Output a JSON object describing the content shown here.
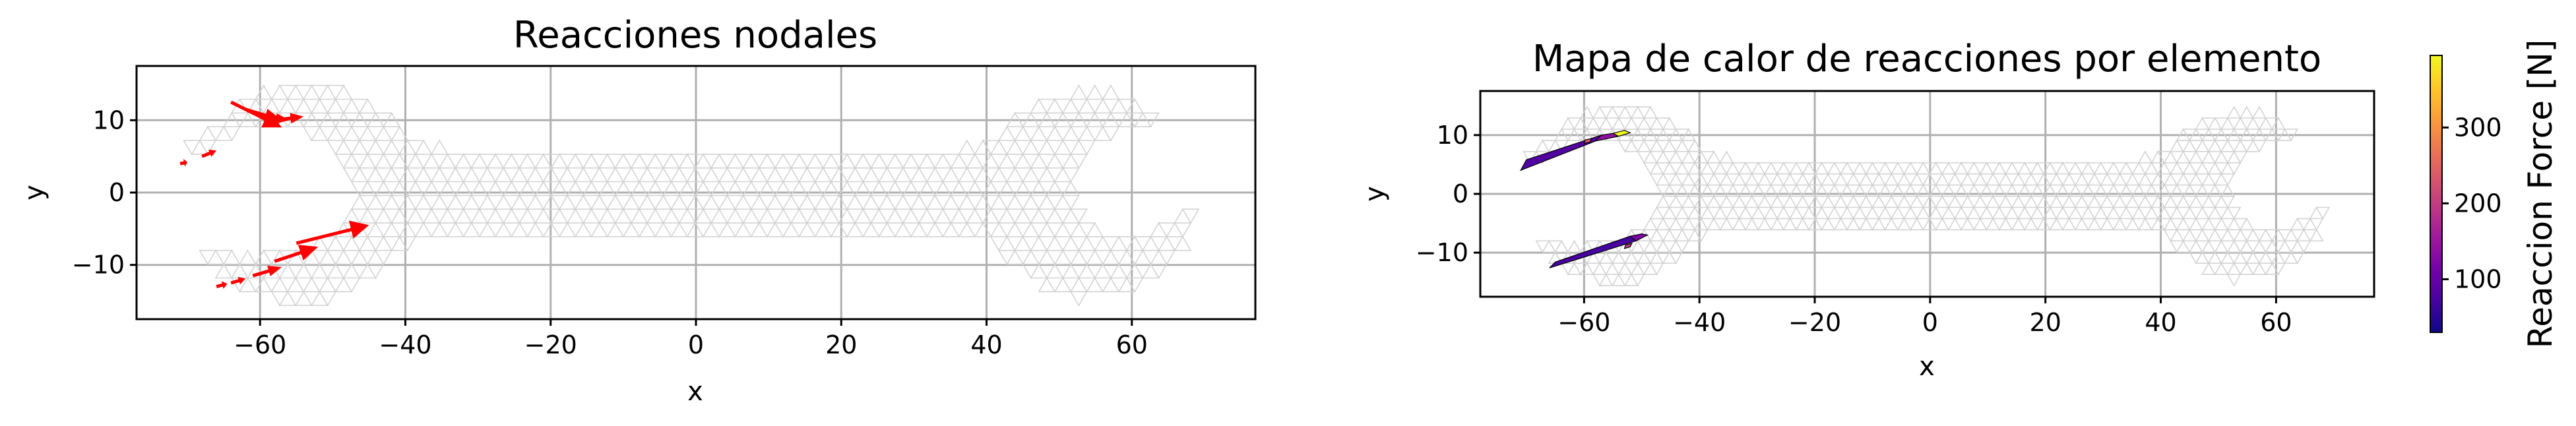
{
  "chart_data": [
    {
      "type": "quiver",
      "title": "Reacciones nodales",
      "xlabel": "x",
      "ylabel": "y",
      "xlim": [
        -77,
        77
      ],
      "ylim": [
        -17.5,
        17.5
      ],
      "xticks": [
        -60,
        -40,
        -20,
        0,
        20,
        40,
        60
      ],
      "yticks": [
        -10,
        0,
        10
      ],
      "xtick_labels": [
        "−60",
        "−40",
        "−20",
        "0",
        "20",
        "40",
        "60"
      ],
      "ytick_labels": [
        "−10",
        "0",
        "10"
      ],
      "grid": true,
      "mesh_color": "#d3d3d3",
      "arrow_color": "#ff0000",
      "arrows": [
        {
          "x": -64,
          "y": 12.5,
          "dx": 7,
          "dy": -3.5
        },
        {
          "x": -62,
          "y": 11.5,
          "dx": 5,
          "dy": -1.5
        },
        {
          "x": -60,
          "y": 10.5,
          "dx": 4,
          "dy": -0.5
        },
        {
          "x": -58,
          "y": 10.0,
          "dx": 4,
          "dy": 0.5
        },
        {
          "x": -68,
          "y": 5.0,
          "dx": 2,
          "dy": 0.8
        },
        {
          "x": -71,
          "y": 4.0,
          "dx": 1,
          "dy": 0.2
        },
        {
          "x": -55,
          "y": -7.0,
          "dx": 10,
          "dy": 2.5
        },
        {
          "x": -58,
          "y": -9.5,
          "dx": 6,
          "dy": 2.0
        },
        {
          "x": -61,
          "y": -11.5,
          "dx": 4,
          "dy": 1.2
        },
        {
          "x": -64,
          "y": -12.5,
          "dx": 2,
          "dy": 0.6
        },
        {
          "x": -66,
          "y": -13.0,
          "dx": 1.5,
          "dy": 0.4
        }
      ]
    },
    {
      "type": "heatmap",
      "title": "Mapa de calor de reacciones por elemento",
      "xlabel": "x",
      "ylabel": "y",
      "xlim": [
        -78,
        77
      ],
      "ylim": [
        -17.5,
        17.5
      ],
      "xticks": [
        -60,
        -40,
        -20,
        0,
        20,
        40,
        60
      ],
      "yticks": [
        -10,
        0,
        10
      ],
      "xtick_labels": [
        "−60",
        "−40",
        "−20",
        "0",
        "20",
        "40",
        "60"
      ],
      "ytick_labels": [
        "−10",
        "0",
        "10"
      ],
      "grid": true,
      "mesh_color": "#d3d3d3",
      "colormap": "plasma",
      "colorbar": {
        "label": "Reaccion Force [N]",
        "range": [
          30,
          395
        ],
        "ticks": [
          100,
          200,
          300
        ],
        "tick_labels": [
          "100",
          "200",
          "300"
        ]
      },
      "elements": [
        {
          "points": [
            [
              -71,
              4.0
            ],
            [
              -58,
              9.0
            ],
            [
              -57,
              10.0
            ],
            [
              -70,
              5.8
            ]
          ],
          "value": 80
        },
        {
          "points": [
            [
              -58,
              9.0
            ],
            [
              -54,
              9.8
            ],
            [
              -55,
              10.3
            ],
            [
              -57,
              10.0
            ]
          ],
          "value": 140
        },
        {
          "points": [
            [
              -60,
              8.6
            ],
            [
              -59,
              8.8
            ],
            [
              -58.7,
              9.4
            ],
            [
              -59.8,
              9.2
            ]
          ],
          "value": 230
        },
        {
          "points": [
            [
              -54,
              9.8
            ],
            [
              -52,
              10.4
            ],
            [
              -53,
              10.8
            ],
            [
              -55,
              10.3
            ]
          ],
          "value": 395
        },
        {
          "points": [
            [
              -66,
              -12.6
            ],
            [
              -51,
              -8.0
            ],
            [
              -52,
              -7.2
            ],
            [
              -65,
              -11.6
            ]
          ],
          "value": 70
        },
        {
          "points": [
            [
              -51,
              -8.0
            ],
            [
              -49,
              -7.0
            ],
            [
              -50,
              -6.8
            ],
            [
              -52,
              -7.2
            ]
          ],
          "value": 120
        },
        {
          "points": [
            [
              -53,
              -9.3
            ],
            [
              -52,
              -9.0
            ],
            [
              -51.7,
              -8.4
            ],
            [
              -52.8,
              -8.7
            ]
          ],
          "value": 200
        }
      ]
    }
  ]
}
